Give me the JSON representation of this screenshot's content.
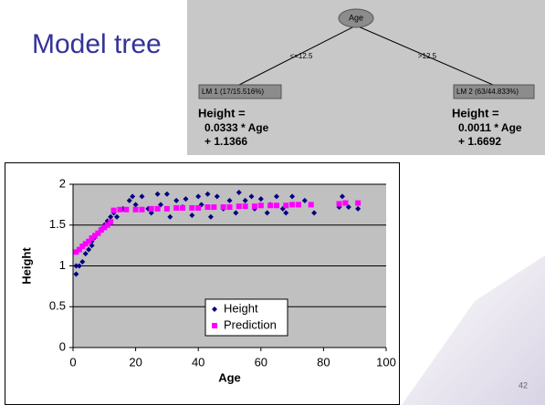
{
  "slide_title": "Model tree",
  "page_number": "42",
  "tree": {
    "root": "Age",
    "edges": [
      "<=12.5",
      ">12.5"
    ],
    "leaves": [
      {
        "label": "LM 1 (17/15.516%)",
        "lines": [
          "Height =",
          "0.0333 * Age",
          "+ 1.1366"
        ]
      },
      {
        "label": "LM 2 (63/44.833%)",
        "lines": [
          "Height =",
          "0.0011 * Age",
          "+ 1.6692"
        ]
      }
    ]
  },
  "chart_data": {
    "type": "scatter",
    "xlabel": "Age",
    "ylabel": "Height",
    "xlim": [
      0,
      100
    ],
    "xticks": [
      0,
      20,
      40,
      60,
      80,
      100
    ],
    "ylim": [
      0,
      2
    ],
    "yticks": [
      0,
      0.5,
      1,
      1.5,
      2
    ],
    "grid": true,
    "legend": "bottom",
    "series": [
      {
        "name": "Height",
        "color": "#000080",
        "marker": "diamond",
        "x": [
          1,
          1,
          2,
          3,
          4,
          5,
          6,
          6,
          7,
          8,
          9,
          10,
          11,
          12,
          13,
          14,
          16,
          18,
          19,
          20,
          22,
          24,
          25,
          27,
          28,
          30,
          31,
          33,
          35,
          36,
          38,
          40,
          41,
          43,
          44,
          46,
          48,
          50,
          52,
          53,
          55,
          57,
          58,
          60,
          62,
          63,
          65,
          67,
          68,
          70,
          72,
          74,
          77,
          85,
          86,
          88,
          91
        ],
        "values": [
          0.9,
          1.0,
          1.0,
          1.05,
          1.15,
          1.2,
          1.25,
          1.3,
          1.35,
          1.4,
          1.45,
          1.5,
          1.55,
          1.6,
          1.65,
          1.6,
          1.7,
          1.8,
          1.85,
          1.75,
          1.85,
          1.7,
          1.65,
          1.88,
          1.75,
          1.88,
          1.6,
          1.8,
          1.72,
          1.82,
          1.62,
          1.85,
          1.75,
          1.88,
          1.6,
          1.85,
          1.7,
          1.8,
          1.65,
          1.9,
          1.8,
          1.85,
          1.7,
          1.82,
          1.65,
          1.75,
          1.85,
          1.7,
          1.65,
          1.85,
          1.75,
          1.8,
          1.65,
          1.72,
          1.85,
          1.72,
          1.7
        ]
      },
      {
        "name": "Prediction",
        "color": "#ff00ff",
        "marker": "square",
        "x": [
          1,
          2,
          3,
          4,
          5,
          6,
          7,
          8,
          9,
          10,
          11,
          12,
          13,
          15,
          17,
          20,
          22,
          25,
          27,
          30,
          33,
          35,
          38,
          40,
          43,
          45,
          48,
          50,
          53,
          55,
          58,
          60,
          63,
          65,
          68,
          70,
          72,
          76,
          85,
          87,
          91
        ],
        "values": [
          1.17,
          1.2,
          1.24,
          1.27,
          1.3,
          1.34,
          1.37,
          1.4,
          1.44,
          1.47,
          1.5,
          1.54,
          1.68,
          1.69,
          1.69,
          1.69,
          1.69,
          1.7,
          1.7,
          1.7,
          1.71,
          1.71,
          1.71,
          1.71,
          1.72,
          1.72,
          1.72,
          1.72,
          1.73,
          1.73,
          1.73,
          1.74,
          1.74,
          1.74,
          1.74,
          1.75,
          1.75,
          1.75,
          1.76,
          1.77,
          1.77
        ]
      }
    ]
  }
}
